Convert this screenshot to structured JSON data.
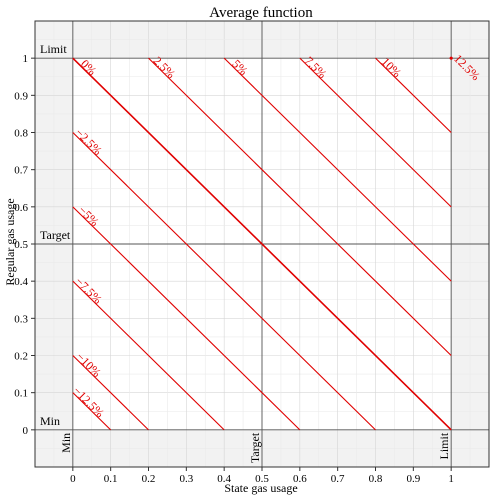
{
  "chart_data": {
    "type": "line",
    "title": "Average function",
    "xlabel": "State gas usage",
    "ylabel": "Regular gas usage",
    "xlim": [
      -0.1,
      1.1
    ],
    "ylim": [
      -0.1,
      1.1
    ],
    "xticks": [
      0,
      0.1,
      0.2,
      0.3,
      0.4,
      0.5,
      0.6,
      0.7,
      0.8,
      0.9,
      1
    ],
    "xtick_labels": [
      "0",
      "0.1",
      "0.2",
      "0.3",
      "0.4",
      "0.5",
      "0.6",
      "0.7",
      "0.8",
      "0.9",
      "1"
    ],
    "yticks": [
      0,
      0.1,
      0.2,
      0.3,
      0.4,
      0.5,
      0.6,
      0.7,
      0.8,
      0.9,
      1
    ],
    "ytick_labels": [
      "0",
      "0.1",
      "0.2",
      "0.3",
      "0.4",
      "0.5",
      "0.6",
      "0.7",
      "0.8",
      "0.9",
      "1"
    ],
    "grid": true,
    "reference_lines": {
      "x": [
        {
          "value": 0,
          "label": "Min"
        },
        {
          "value": 0.5,
          "label": "Target"
        },
        {
          "value": 1,
          "label": "Limit"
        }
      ],
      "y": [
        {
          "value": 0,
          "label": "Min"
        },
        {
          "value": 0.5,
          "label": "Target"
        },
        {
          "value": 1,
          "label": "Limit"
        }
      ]
    },
    "contour_color": "#e00000",
    "contours": [
      {
        "label": "−12.5%",
        "sum": 0.1
      },
      {
        "label": "−10%",
        "sum": 0.2
      },
      {
        "label": "−7.5%",
        "sum": 0.4
      },
      {
        "label": "−5%",
        "sum": 0.6
      },
      {
        "label": "−2.5%",
        "sum": 0.8
      },
      {
        "label": "0%",
        "sum": 1.0
      },
      {
        "label": "2.5%",
        "sum": 1.2
      },
      {
        "label": "5%",
        "sum": 1.4
      },
      {
        "label": "7.5%",
        "sum": 1.6
      },
      {
        "label": "10%",
        "sum": 1.8
      },
      {
        "label": "12.5%",
        "sum": 2.0
      }
    ]
  }
}
